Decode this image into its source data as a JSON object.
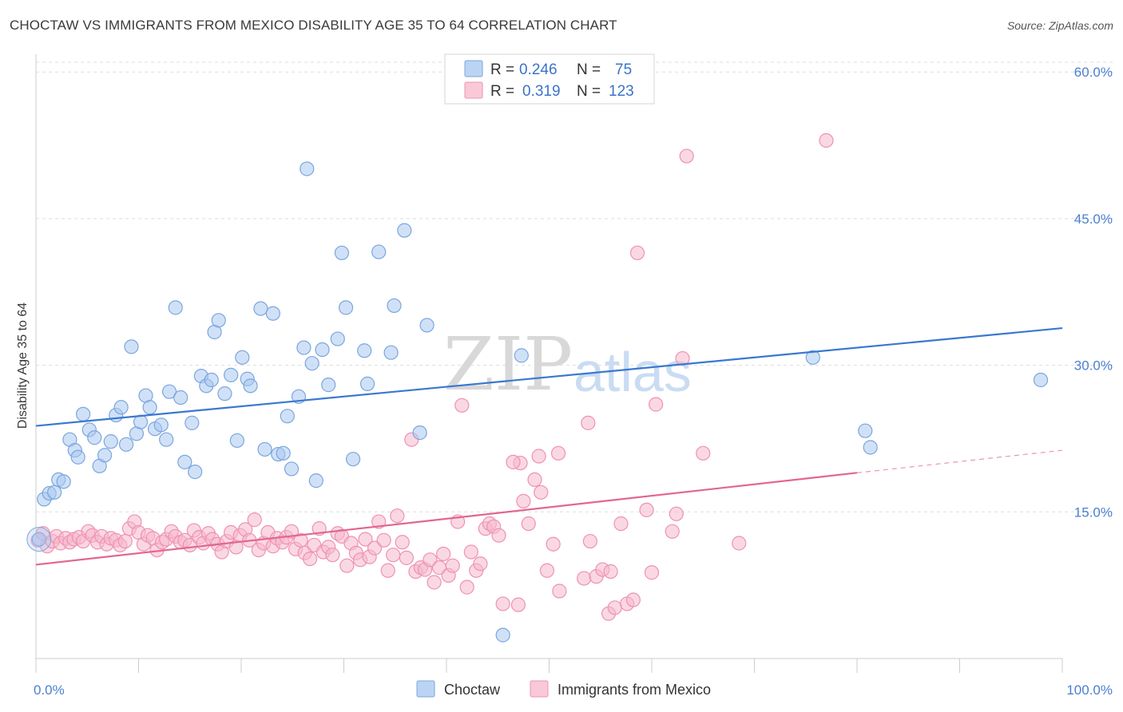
{
  "title": "CHOCTAW VS IMMIGRANTS FROM MEXICO DISABILITY AGE 35 TO 64 CORRELATION CHART",
  "source": "Source: ZipAtlas.com",
  "watermark": {
    "zip": "ZIP",
    "atlas": "atlas"
  },
  "colors": {
    "choctaw_fill": "#a9c8f0",
    "choctaw_stroke": "#7aa6df",
    "choctaw_line": "#3a78d0",
    "mexico_fill": "#f6b8cc",
    "mexico_stroke": "#ee92b0",
    "mexico_line": "#e2668f",
    "grid": "#dddddd",
    "tick_text": "#4a7fd0"
  },
  "legend_top": {
    "rows": [
      {
        "r_label": "R =",
        "r_value": "0.246",
        "n_label": "N =",
        "n_value": "75"
      },
      {
        "r_label": "R =",
        "r_value": "0.319",
        "n_label": "N =",
        "n_value": "123"
      }
    ]
  },
  "chart_data": {
    "type": "scatter",
    "title": "CHOCTAW VS IMMIGRANTS FROM MEXICO DISABILITY AGE 35 TO 64 CORRELATION CHART",
    "xlabel": "",
    "ylabel": "Disability Age 35 to 64",
    "xlim": [
      0,
      100
    ],
    "ylim": [
      0,
      61
    ],
    "x_tick_labels": [
      "0.0%",
      "100.0%"
    ],
    "y_ticks": [
      15,
      30,
      45,
      60
    ],
    "y_tick_labels": [
      "15.0%",
      "30.0%",
      "45.0%",
      "60.0%"
    ],
    "grid": true,
    "legend_placement": "top-center and bottom",
    "series": [
      {
        "name": "Choctaw",
        "r": 0.246,
        "n": 75,
        "trend": {
          "x": [
            0,
            100
          ],
          "y": [
            23.8,
            33.8
          ]
        },
        "points": [
          [
            0.3,
            12.2
          ],
          [
            0.8,
            16.3
          ],
          [
            1.3,
            16.9
          ],
          [
            1.8,
            17.0
          ],
          [
            2.2,
            18.3
          ],
          [
            2.7,
            18.1
          ],
          [
            3.3,
            22.4
          ],
          [
            3.8,
            21.3
          ],
          [
            4.1,
            20.6
          ],
          [
            4.6,
            25.0
          ],
          [
            5.2,
            23.4
          ],
          [
            5.7,
            22.6
          ],
          [
            6.2,
            19.7
          ],
          [
            6.7,
            20.8
          ],
          [
            7.3,
            22.2
          ],
          [
            7.8,
            24.9
          ],
          [
            8.3,
            25.7
          ],
          [
            8.8,
            21.9
          ],
          [
            9.3,
            31.9
          ],
          [
            9.8,
            23.0
          ],
          [
            10.2,
            24.2
          ],
          [
            10.7,
            26.9
          ],
          [
            11.1,
            25.7
          ],
          [
            11.6,
            23.5
          ],
          [
            12.2,
            23.9
          ],
          [
            12.7,
            22.4
          ],
          [
            13.0,
            27.3
          ],
          [
            13.6,
            35.9
          ],
          [
            14.1,
            26.7
          ],
          [
            14.5,
            20.1
          ],
          [
            15.2,
            24.1
          ],
          [
            15.5,
            19.1
          ],
          [
            16.1,
            28.9
          ],
          [
            16.6,
            27.9
          ],
          [
            17.1,
            28.5
          ],
          [
            17.4,
            33.4
          ],
          [
            17.8,
            34.6
          ],
          [
            18.4,
            27.1
          ],
          [
            19.0,
            29.0
          ],
          [
            19.6,
            22.3
          ],
          [
            20.1,
            30.8
          ],
          [
            20.6,
            28.6
          ],
          [
            20.9,
            27.9
          ],
          [
            21.9,
            35.8
          ],
          [
            22.3,
            21.4
          ],
          [
            23.1,
            35.3
          ],
          [
            23.6,
            20.9
          ],
          [
            24.1,
            21.0
          ],
          [
            24.5,
            24.8
          ],
          [
            24.9,
            19.4
          ],
          [
            25.6,
            26.8
          ],
          [
            26.1,
            31.8
          ],
          [
            26.9,
            30.2
          ],
          [
            27.3,
            18.2
          ],
          [
            27.9,
            31.6
          ],
          [
            28.5,
            28.0
          ],
          [
            29.4,
            32.7
          ],
          [
            29.8,
            41.5
          ],
          [
            30.2,
            35.9
          ],
          [
            30.9,
            20.4
          ],
          [
            32.0,
            31.5
          ],
          [
            32.3,
            28.1
          ],
          [
            33.4,
            41.6
          ],
          [
            34.6,
            31.3
          ],
          [
            34.9,
            36.1
          ],
          [
            35.9,
            43.8
          ],
          [
            37.4,
            23.1
          ],
          [
            38.1,
            34.1
          ],
          [
            26.4,
            50.1
          ],
          [
            47.3,
            31.0
          ],
          [
            45.5,
            2.4
          ],
          [
            75.7,
            30.8
          ],
          [
            80.8,
            23.3
          ],
          [
            81.3,
            21.6
          ],
          [
            97.9,
            28.5
          ]
        ]
      },
      {
        "name": "Immigrants from Mexico",
        "r": 0.319,
        "n": 123,
        "trend": {
          "x": [
            0,
            80
          ],
          "y": [
            9.6,
            19.0
          ]
        },
        "trend_dashed": {
          "x": [
            80,
            100
          ],
          "y": [
            19.0,
            21.3
          ]
        },
        "points": [
          [
            0.2,
            12.1
          ],
          [
            0.7,
            12.8
          ],
          [
            1.1,
            11.5
          ],
          [
            1.6,
            12.0
          ],
          [
            2.0,
            12.5
          ],
          [
            2.4,
            11.8
          ],
          [
            2.9,
            12.3
          ],
          [
            3.3,
            11.9
          ],
          [
            3.7,
            12.2
          ],
          [
            4.2,
            12.4
          ],
          [
            4.6,
            12.0
          ],
          [
            5.1,
            13.0
          ],
          [
            5.5,
            12.6
          ],
          [
            6.0,
            11.9
          ],
          [
            6.4,
            12.5
          ],
          [
            6.9,
            11.7
          ],
          [
            7.3,
            12.3
          ],
          [
            7.8,
            12.1
          ],
          [
            8.2,
            11.6
          ],
          [
            8.7,
            12.0
          ],
          [
            9.1,
            13.3
          ],
          [
            9.6,
            14.0
          ],
          [
            10.0,
            12.9
          ],
          [
            10.5,
            11.7
          ],
          [
            10.9,
            12.6
          ],
          [
            11.4,
            12.3
          ],
          [
            11.8,
            11.1
          ],
          [
            12.3,
            11.9
          ],
          [
            12.7,
            12.2
          ],
          [
            13.2,
            13.0
          ],
          [
            13.6,
            12.5
          ],
          [
            14.1,
            11.9
          ],
          [
            14.5,
            12.1
          ],
          [
            15.0,
            11.6
          ],
          [
            15.4,
            13.1
          ],
          [
            15.9,
            12.4
          ],
          [
            16.3,
            11.8
          ],
          [
            16.8,
            12.8
          ],
          [
            17.2,
            12.2
          ],
          [
            17.7,
            11.7
          ],
          [
            18.1,
            10.9
          ],
          [
            18.6,
            12.0
          ],
          [
            19.0,
            12.9
          ],
          [
            19.5,
            11.4
          ],
          [
            19.9,
            12.6
          ],
          [
            20.4,
            13.2
          ],
          [
            20.8,
            12.1
          ],
          [
            21.3,
            14.2
          ],
          [
            21.7,
            11.1
          ],
          [
            22.2,
            11.8
          ],
          [
            22.6,
            12.9
          ],
          [
            23.1,
            11.5
          ],
          [
            23.5,
            12.3
          ],
          [
            24.0,
            11.9
          ],
          [
            24.4,
            12.4
          ],
          [
            24.9,
            13.0
          ],
          [
            25.3,
            11.2
          ],
          [
            25.8,
            12.1
          ],
          [
            26.2,
            10.8
          ],
          [
            26.7,
            10.2
          ],
          [
            27.1,
            11.6
          ],
          [
            27.6,
            13.3
          ],
          [
            28.0,
            10.9
          ],
          [
            28.5,
            11.4
          ],
          [
            28.9,
            10.6
          ],
          [
            29.4,
            12.8
          ],
          [
            29.8,
            12.5
          ],
          [
            30.3,
            9.5
          ],
          [
            30.7,
            11.8
          ],
          [
            31.2,
            10.8
          ],
          [
            31.6,
            10.1
          ],
          [
            32.1,
            12.2
          ],
          [
            32.5,
            10.4
          ],
          [
            33.0,
            11.3
          ],
          [
            33.4,
            14.0
          ],
          [
            33.9,
            12.1
          ],
          [
            34.3,
            9.0
          ],
          [
            34.8,
            10.6
          ],
          [
            35.2,
            14.6
          ],
          [
            35.7,
            11.9
          ],
          [
            36.1,
            10.3
          ],
          [
            36.6,
            22.4
          ],
          [
            37.0,
            8.9
          ],
          [
            37.5,
            9.3
          ],
          [
            37.9,
            9.1
          ],
          [
            38.4,
            10.1
          ],
          [
            38.8,
            7.8
          ],
          [
            39.3,
            9.3
          ],
          [
            39.7,
            10.7
          ],
          [
            40.2,
            8.5
          ],
          [
            40.6,
            9.5
          ],
          [
            41.1,
            14.0
          ],
          [
            41.5,
            25.9
          ],
          [
            42.0,
            7.3
          ],
          [
            42.4,
            10.9
          ],
          [
            42.9,
            9.0
          ],
          [
            43.3,
            9.7
          ],
          [
            43.8,
            13.3
          ],
          [
            44.2,
            13.8
          ],
          [
            44.6,
            13.5
          ],
          [
            45.1,
            12.6
          ],
          [
            45.5,
            5.6
          ],
          [
            47.0,
            5.5
          ],
          [
            47.2,
            20.0
          ],
          [
            48.0,
            13.8
          ],
          [
            48.6,
            18.3
          ],
          [
            49.2,
            17.0
          ],
          [
            49.8,
            9.0
          ],
          [
            50.4,
            11.7
          ],
          [
            51.0,
            6.9
          ],
          [
            53.4,
            8.2
          ],
          [
            54.0,
            12.0
          ],
          [
            54.6,
            8.4
          ],
          [
            55.2,
            9.1
          ],
          [
            55.8,
            4.6
          ],
          [
            56.4,
            5.2
          ],
          [
            57.0,
            13.8
          ],
          [
            57.6,
            5.6
          ],
          [
            58.2,
            6.0
          ],
          [
            59.5,
            15.2
          ],
          [
            60.0,
            8.8
          ],
          [
            62.0,
            13.0
          ],
          [
            62.4,
            14.8
          ]
        ],
        "extra_points": [
          [
            46.5,
            20.1
          ],
          [
            50.9,
            21.0
          ],
          [
            53.8,
            24.1
          ],
          [
            47.5,
            16.1
          ],
          [
            49.0,
            20.7
          ],
          [
            56.0,
            8.9
          ],
          [
            60.4,
            26.0
          ],
          [
            63.0,
            30.7
          ],
          [
            65.0,
            21.0
          ],
          [
            68.5,
            11.8
          ],
          [
            58.6,
            41.5
          ],
          [
            63.4,
            51.4
          ],
          [
            77.0,
            53.0
          ]
        ]
      }
    ]
  },
  "bottom_legend": {
    "items": [
      {
        "label": "Choctaw"
      },
      {
        "label": "Immigrants from Mexico"
      }
    ]
  }
}
